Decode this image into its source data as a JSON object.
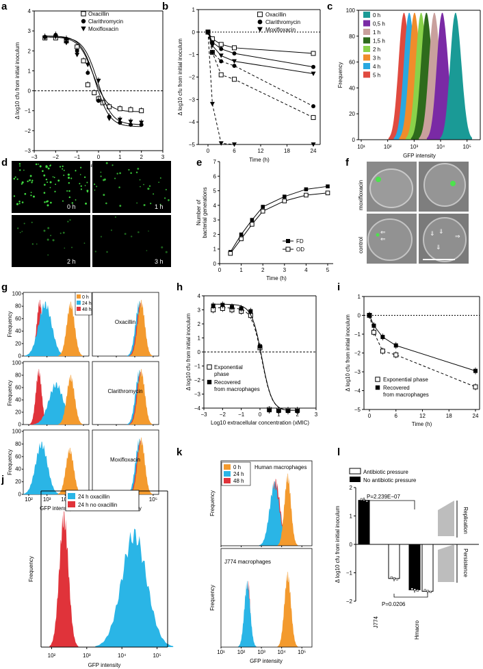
{
  "panel_labels": [
    "a",
    "b",
    "c",
    "d",
    "e",
    "f",
    "g",
    "h",
    "i",
    "j",
    "k",
    "l"
  ],
  "colors": {
    "oxa_blue": "#2ab5e6",
    "noabx_red": "#e0333a",
    "t0_orange": "#f39a2e",
    "c0h": "#1a9a96",
    "c05h": "#7a2aa5",
    "c1h": "#c9a09d",
    "c15h": "#2e6b1c",
    "c2h": "#8ad24a",
    "c3h": "#f08c2b",
    "c4h": "#2aa8e0",
    "c5h": "#e04a3f"
  },
  "text": {
    "cfu_label": "Δ log10 cfu from initial inoculum",
    "conc_label": "Log10 extracellular concentration (xMIC)",
    "time_label": "Time (h)",
    "freq_label": "Frequency",
    "gfp_label": "GFP intensity",
    "gen_label_1": "Number of",
    "gen_label_2": "bacterial generations",
    "d_times": [
      "0 h",
      "1 h",
      "2 h",
      "3 h"
    ],
    "f_rows": [
      "moxifloxacin",
      "control"
    ],
    "g_drugs": [
      "Oxacillin",
      "Clarithromycin",
      "Moxifloxacin"
    ],
    "k_titles": [
      "Human macrophages",
      "J774 macrophages"
    ],
    "l_pvalue_1": "P=2.239E−07",
    "l_pvalue_2": "P=0.0206",
    "l_side_1": "Replication",
    "l_side_2": "Persistence"
  },
  "chart_data": [
    {
      "panel": "a",
      "type": "scatter",
      "xlabel": "Log10 extracellular concentration (xMIC)",
      "ylabel": "Δ log10 cfu from initial inoculum",
      "xlim": [
        -3,
        3
      ],
      "ylim": [
        -3,
        4
      ],
      "xticks": [
        -3,
        -2,
        -1,
        0,
        1,
        2,
        3
      ],
      "yticks": [
        -3,
        -2,
        -1,
        0,
        1,
        2,
        3,
        4
      ],
      "series": [
        {
          "name": "Oxacillin",
          "marker": "open-square",
          "x": [
            -2.5,
            -2,
            -1.5,
            -1,
            -0.7,
            -0.5,
            -0.2,
            0,
            0.2,
            0.5,
            1,
            1.5,
            2
          ],
          "y": [
            2.65,
            2.65,
            2.5,
            2.2,
            1.5,
            0.3,
            -0.1,
            -0.4,
            -0.6,
            -0.8,
            -0.9,
            -0.95,
            -1.0
          ],
          "curve_bottom": -1.05,
          "curve_top": 2.7,
          "ec50": -0.25
        },
        {
          "name": "Clarithromycin",
          "marker": "filled-circle",
          "x": [
            -2.5,
            -2,
            -1.5,
            -1,
            -0.5,
            0,
            0.5,
            1,
            1.5,
            2
          ],
          "y": [
            2.7,
            2.8,
            2.6,
            2.0,
            0.9,
            -0.5,
            -1.3,
            -1.6,
            -1.7,
            -1.7
          ],
          "curve_bottom": -1.8,
          "curve_top": 2.75,
          "ec50": -0.15
        },
        {
          "name": "Moxifloxacin",
          "marker": "filled-triangle-down",
          "x": [
            -2.5,
            -2,
            -1.5,
            -1,
            -0.5,
            0,
            0.5,
            1,
            1.5,
            2
          ],
          "y": [
            2.65,
            2.7,
            2.4,
            1.8,
            1.3,
            0.5,
            -1.4,
            -1.45,
            -1.55,
            -1.6
          ],
          "curve_bottom": -1.7,
          "curve_top": 2.7,
          "ec50": -0.05
        }
      ]
    },
    {
      "panel": "b",
      "type": "line",
      "xlabel": "Time (h)",
      "ylabel": "Δ log10 cfu from initial inoculum",
      "xlim": [
        0,
        24
      ],
      "ylim": [
        -5,
        1
      ],
      "xticks": [
        0,
        6,
        12,
        18,
        24
      ],
      "yticks": [
        -5,
        -4,
        -3,
        -2,
        -1,
        0,
        1
      ],
      "series": [
        {
          "name": "Oxacillin",
          "marker": "open-square",
          "style": "solid",
          "x": [
            0,
            1,
            3,
            6,
            24
          ],
          "y": [
            0,
            -0.3,
            -0.55,
            -0.7,
            -0.95
          ]
        },
        {
          "name": "Clarithromycin",
          "marker": "filled-circle",
          "style": "solid",
          "x": [
            0,
            1,
            3,
            6,
            24
          ],
          "y": [
            0,
            -0.45,
            -0.75,
            -0.95,
            -1.55
          ]
        },
        {
          "name": "Moxifloxacin",
          "marker": "filled-triangle-down",
          "style": "solid",
          "x": [
            0,
            1,
            3,
            6,
            24
          ],
          "y": [
            0,
            -0.6,
            -1.05,
            -1.3,
            -1.85
          ]
        },
        {
          "name": "Oxacillin",
          "marker": "open-square",
          "style": "dashed",
          "x": [
            0,
            1,
            3,
            6,
            24
          ],
          "y": [
            0,
            -0.9,
            -1.9,
            -2.1,
            -3.8
          ]
        },
        {
          "name": "Clarithromycin",
          "marker": "filled-circle",
          "style": "dashed",
          "x": [
            0,
            1,
            3,
            6,
            24
          ],
          "y": [
            0,
            -0.9,
            -1.3,
            -1.5,
            -3.3
          ]
        },
        {
          "name": "Moxifloxacin",
          "marker": "filled-triangle-down",
          "style": "dashed",
          "x": [
            0,
            1,
            3,
            6,
            24
          ],
          "y": [
            0,
            -3.2,
            -4.95,
            -5.0,
            -5.0
          ]
        }
      ]
    },
    {
      "panel": "c",
      "type": "area",
      "xlabel": "GFP intensity",
      "ylabel": "Frequency",
      "xlim_log10": [
        1,
        5.5
      ],
      "ylim": [
        0,
        100
      ],
      "xticks": [
        "10¹",
        "10²",
        "10³",
        "10⁴",
        "10⁵"
      ],
      "yticks": [
        0,
        20,
        40,
        60,
        80,
        100
      ],
      "series": [
        {
          "name": "0 h",
          "peak_log10": 4.55,
          "color": "#1a9a96"
        },
        {
          "name": "0,5 h",
          "peak_log10": 4.05,
          "color": "#7a2aa5"
        },
        {
          "name": "1 h",
          "peak_log10": 3.75,
          "color": "#c9a09d"
        },
        {
          "name": "1,5 h",
          "peak_log10": 3.45,
          "color": "#2e6b1c"
        },
        {
          "name": "2 h",
          "peak_log10": 3.25,
          "color": "#8ad24a"
        },
        {
          "name": "3 h",
          "peak_log10": 3.0,
          "color": "#f08c2b"
        },
        {
          "name": "4 h",
          "peak_log10": 2.8,
          "color": "#2aa8e0"
        },
        {
          "name": "5 h",
          "peak_log10": 2.6,
          "color": "#e04a3f"
        }
      ]
    },
    {
      "panel": "e",
      "type": "line",
      "xlabel": "Time (h)",
      "ylabel": "Number of bacterial generations",
      "xlim": [
        0,
        5
      ],
      "ylim": [
        0,
        7
      ],
      "xticks": [
        0,
        1,
        2,
        3,
        4,
        5
      ],
      "yticks": [
        0,
        1,
        2,
        3,
        4,
        5,
        6,
        7
      ],
      "series": [
        {
          "name": "FD",
          "marker": "filled-square",
          "x": [
            0.5,
            1,
            1.5,
            2,
            3,
            4,
            5
          ],
          "y": [
            0.8,
            2.0,
            3.0,
            3.9,
            4.6,
            5.1,
            5.3
          ]
        },
        {
          "name": "OD",
          "marker": "open-square",
          "x": [
            0.5,
            1,
            1.5,
            2,
            3,
            4,
            5
          ],
          "y": [
            0.7,
            1.7,
            2.7,
            3.6,
            4.3,
            4.7,
            4.85
          ]
        }
      ]
    },
    {
      "panel": "h",
      "type": "scatter",
      "xlabel": "Log10 extracellular concentration (xMIC)",
      "ylabel": "Δ log10 cfu from initial inoculum",
      "xlim": [
        -3,
        3
      ],
      "ylim": [
        -4,
        4
      ],
      "xticks": [
        -3,
        -2,
        -1,
        0,
        1,
        2,
        3
      ],
      "yticks": [
        -4,
        -3,
        -2,
        -1,
        0,
        1,
        2,
        3,
        4
      ],
      "series": [
        {
          "name": "Exponential phase",
          "marker": "open-square",
          "x": [
            -2.5,
            -2,
            -1.5,
            -1,
            -0.5,
            0,
            0.5,
            1,
            1.5,
            2
          ],
          "y": [
            3.0,
            3.1,
            3.0,
            2.9,
            2.6,
            0.3,
            -4.1,
            -4.15,
            -4.15,
            -4.15
          ]
        },
        {
          "name": "Recovered from macrophages",
          "marker": "filled-square",
          "x": [
            -2.5,
            -2,
            -1.5,
            -1,
            -0.5,
            0,
            0.5,
            1,
            1.5,
            2
          ],
          "y": [
            3.3,
            3.35,
            3.2,
            3.1,
            2.9,
            0.4,
            -4.15,
            -4.2,
            -4.2,
            -4.2
          ]
        }
      ]
    },
    {
      "panel": "i",
      "type": "line",
      "xlabel": "Time (h)",
      "ylabel": "Δ log10 cfu from initial inoculum",
      "xlim": [
        0,
        24
      ],
      "ylim": [
        -5,
        1
      ],
      "xticks": [
        0,
        6,
        12,
        18,
        24
      ],
      "yticks": [
        -5,
        -4,
        -3,
        -2,
        -1,
        0,
        1
      ],
      "series": [
        {
          "name": "Exponential phase",
          "marker": "open-square",
          "style": "dashed",
          "x": [
            0,
            1,
            3,
            6,
            24
          ],
          "y": [
            0,
            -0.9,
            -1.9,
            -2.1,
            -3.8
          ]
        },
        {
          "name": "Recovered from macrophages",
          "marker": "filled-square",
          "style": "solid",
          "x": [
            0,
            1,
            3,
            6,
            24
          ],
          "y": [
            0,
            -0.55,
            -1.15,
            -1.6,
            -2.95
          ]
        }
      ]
    },
    {
      "panel": "g",
      "type": "area",
      "xlabel": "GFP intensity",
      "ylabel": "Frequency",
      "xticks": [
        "10²",
        "10³",
        "10⁴",
        "10⁵"
      ],
      "yticks": [
        0,
        20,
        40,
        60,
        80,
        100
      ],
      "legend": [
        "0 h",
        "24 h",
        "48 h"
      ],
      "rows": [
        {
          "drug": "Oxacillin"
        },
        {
          "drug": "Clarithromycin"
        },
        {
          "drug": "Moxifloxacin"
        }
      ]
    },
    {
      "panel": "j",
      "type": "area",
      "xlabel": "GFP intensity",
      "ylabel": "Frequency",
      "xticks": [
        "10²",
        "10³",
        "10⁴",
        "10⁵"
      ],
      "series": [
        {
          "name": "24 h oxacillin",
          "color": "#2ab5e6"
        },
        {
          "name": "24 h no oxacillin",
          "color": "#e0333a"
        }
      ]
    },
    {
      "panel": "k",
      "type": "area",
      "xlabel": "GFP intensity",
      "ylabel": "Frequency",
      "xticks": [
        "10¹",
        "10²",
        "10³",
        "10⁴",
        "10⁵"
      ],
      "legend": [
        "0 h",
        "24 h",
        "48 h"
      ],
      "titles": [
        "Human macrophages",
        "J774 macrophages"
      ]
    },
    {
      "panel": "l",
      "type": "bar",
      "ylabel": "Δ log10 cfu from initial inoculum",
      "ylim": [
        -2,
        2
      ],
      "yticks": [
        -2,
        -1,
        0,
        1,
        2
      ],
      "categories": [
        "J774",
        "Hmacro"
      ],
      "series": [
        {
          "name": "Antibiotic pressure",
          "fill": "open",
          "values": [
            -1.2,
            -1.65
          ]
        },
        {
          "name": "No antibiotic pressure",
          "fill": "filled",
          "values": [
            1.55,
            -1.6
          ]
        }
      ]
    }
  ]
}
